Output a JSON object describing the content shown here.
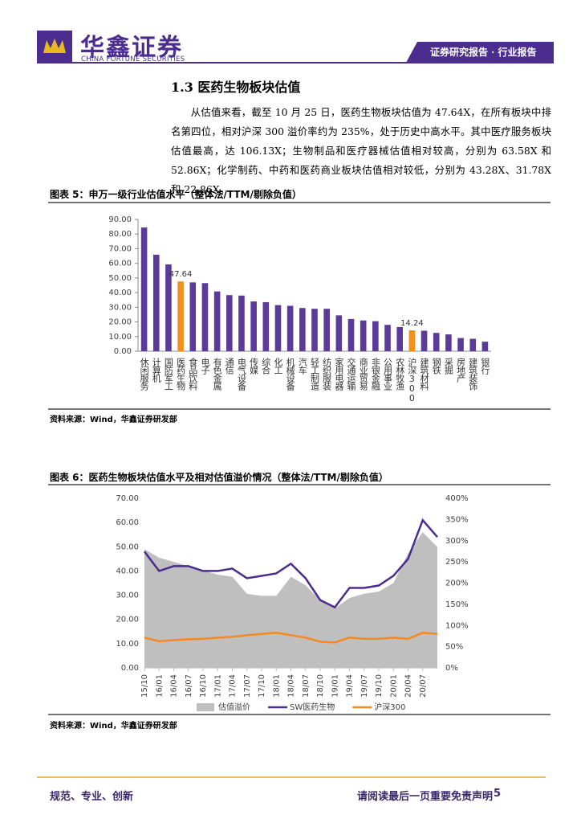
{
  "header": {
    "logo_name": "华鑫证券",
    "logo_subtitle": "CHINA FORTUNE SECURITIES",
    "banner": "证券研究报告 · 行业报告"
  },
  "section": {
    "title": "1.3 医药生物板块估值",
    "paragraph": "从估值来看，截至 10 月 25 日，医药生物板块估值为 47.64X，在所有板块中排名第四位，相对沪深 300 溢价率约为 235%，处于历史中高水平。其中医疗服务板块估值最高，达 106.13X；生物制品和医疗器械估值相对较高，分别为 63.58X 和 52.86X；化学制药、中药和医药商业板块估值相对较低，分别为 43.28X、31.78X 和 22.86X。"
  },
  "figures": [
    {
      "title": "图表 5：申万一级行业估值水平（整体法/TTM/剔除负值）",
      "source": "资料来源：Wind，华鑫证券研发部"
    },
    {
      "title": "图表 6：医药生物板块估值水平及相对估值溢价情况（整体法/TTM/剔除负值）",
      "source": "资料来源：Wind，华鑫证券研发部"
    }
  ],
  "chart_data": [
    {
      "type": "bar",
      "categories": [
        "休闲服务",
        "计算机",
        "国防军工",
        "医药生物",
        "食品饮料",
        "电子",
        "有色金属",
        "通信",
        "电气设备",
        "传媒",
        "综合",
        "化工",
        "机械设备",
        "汽车",
        "轻工制造",
        "纺织服装",
        "家用电器",
        "交通运输",
        "商业贸易",
        "非银金融",
        "公用事业",
        "农林牧渔",
        "沪深300",
        "建筑材料",
        "钢铁",
        "采掘",
        "房地产",
        "建筑装饰",
        "银行"
      ],
      "values": [
        84.5,
        65.9,
        59.3,
        47.64,
        47.0,
        46.5,
        40.8,
        38.3,
        38.0,
        34.0,
        33.5,
        31.5,
        31.0,
        29.5,
        29.0,
        29.0,
        24.5,
        22.0,
        21.0,
        20.5,
        18.0,
        16.5,
        14.24,
        14.0,
        12.5,
        11.5,
        9.0,
        8.5,
        6.5
      ],
      "colors": [
        "#5b3a99",
        "#5b3a99",
        "#5b3a99",
        "#f5901e",
        "#5b3a99",
        "#5b3a99",
        "#5b3a99",
        "#5b3a99",
        "#5b3a99",
        "#5b3a99",
        "#5b3a99",
        "#5b3a99",
        "#5b3a99",
        "#5b3a99",
        "#5b3a99",
        "#5b3a99",
        "#5b3a99",
        "#5b3a99",
        "#5b3a99",
        "#5b3a99",
        "#5b3a99",
        "#5b3a99",
        "#f5901e",
        "#5b3a99",
        "#5b3a99",
        "#5b3a99",
        "#5b3a99",
        "#5b3a99",
        "#5b3a99"
      ],
      "label_highlighted": true,
      "ylim": [
        0,
        90
      ],
      "yticks": [
        {
          "value": 0,
          "label": "0.00"
        },
        {
          "value": 10,
          "label": "10.00"
        },
        {
          "value": 20,
          "label": "20.00"
        },
        {
          "value": 30,
          "label": "30.00"
        },
        {
          "value": 40,
          "label": "40.00"
        },
        {
          "value": 50,
          "label": "50.00"
        },
        {
          "value": 60,
          "label": "60.00"
        },
        {
          "value": 70,
          "label": "70.00"
        },
        {
          "value": 80,
          "label": "80.00"
        },
        {
          "value": 90,
          "label": "90.00"
        }
      ],
      "grid": false
    },
    {
      "type": "line",
      "x": [
        "15/10",
        "16/01",
        "16/04",
        "16/07",
        "16/10",
        "17/01",
        "17/04",
        "17/07",
        "17/10",
        "18/01",
        "18/04",
        "18/07",
        "18/10",
        "19/01",
        "19/04",
        "19/07",
        "19/10",
        "20/01",
        "20/04",
        "20/07",
        null
      ],
      "series": [
        {
          "name": "估值溢价",
          "color": "#bfbfbf",
          "kind": "area",
          "axis": "y2",
          "values": [
            280,
            260,
            250,
            240,
            230,
            220,
            215,
            175,
            170,
            170,
            215,
            195,
            160,
            140,
            165,
            175,
            180,
            200,
            270,
            320,
            285
          ]
        },
        {
          "name": "SW医药生物",
          "color": "#4b2d8f",
          "kind": "line",
          "values": [
            48,
            40,
            42,
            42,
            40,
            40,
            41,
            37,
            38,
            39,
            43,
            37,
            28,
            25,
            33,
            33,
            34,
            38,
            45,
            61,
            54
          ]
        },
        {
          "name": "沪深300",
          "color": "#f5891f",
          "kind": "line",
          "values": [
            12.5,
            11,
            11.5,
            11.8,
            12,
            12.5,
            12.8,
            13.5,
            14,
            14.5,
            13.5,
            12.5,
            10.8,
            10.5,
            12.5,
            12,
            12,
            12.5,
            12,
            14.5,
            14
          ]
        }
      ],
      "ylim": [
        0,
        70
      ],
      "yticks": [
        {
          "value": 0,
          "label": "0.00"
        },
        {
          "value": 10,
          "label": "10.00"
        },
        {
          "value": 20,
          "label": "20.00"
        },
        {
          "value": 30,
          "label": "30.00"
        },
        {
          "value": 40,
          "label": "40.00"
        },
        {
          "value": 50,
          "label": "50.00"
        },
        {
          "value": 60,
          "label": "60.00"
        },
        {
          "value": 70,
          "label": "70.00"
        }
      ],
      "y2lim": [
        0,
        400
      ],
      "y2ticks": [
        {
          "value": 0,
          "label": "0%"
        },
        {
          "value": 50,
          "label": "50%"
        },
        {
          "value": 100,
          "label": "100%"
        },
        {
          "value": 150,
          "label": "150%"
        },
        {
          "value": 200,
          "label": "200%"
        },
        {
          "value": 250,
          "label": "250%"
        },
        {
          "value": 300,
          "label": "300%"
        },
        {
          "value": 350,
          "label": "350%"
        },
        {
          "value": 400,
          "label": "400%"
        }
      ],
      "legend": "bottom"
    }
  ],
  "footer": {
    "left": "规范、专业、创新",
    "right": "请阅读最后一页重要免责声明",
    "page": "5"
  }
}
